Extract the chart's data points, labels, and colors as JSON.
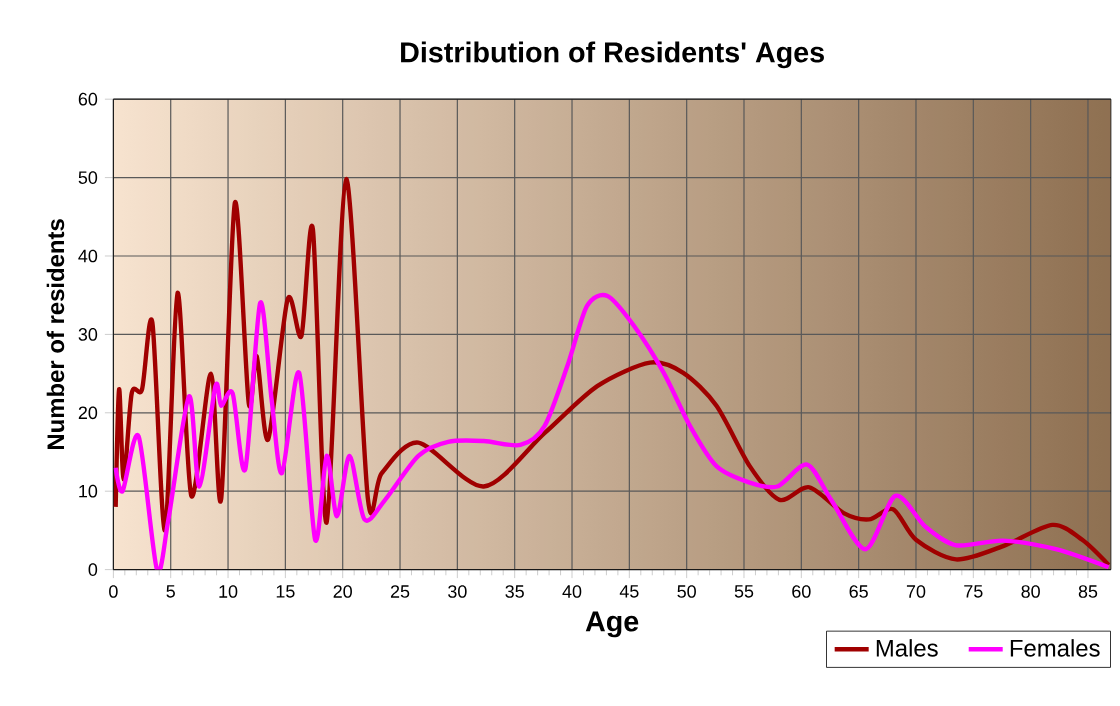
{
  "chart_data": {
    "type": "line",
    "title": "Distribution of Residents' Ages",
    "xlabel": "Age",
    "ylabel": "Number of residents",
    "xlim": [
      0,
      87
    ],
    "ylim": [
      0,
      60
    ],
    "xticks": [
      0,
      5,
      10,
      15,
      20,
      25,
      30,
      35,
      40,
      45,
      50,
      55,
      60,
      65,
      70,
      75,
      80,
      85
    ],
    "yticks": [
      0,
      10,
      20,
      30,
      40,
      50,
      60
    ],
    "grid": true,
    "legend": "bottom right",
    "marker": "none",
    "line_style": "solid",
    "series": [
      {
        "name": "Males",
        "color": "#a00000",
        "x": [
          0.2,
          0.5,
          0.9,
          1.6,
          2.5,
          3.4,
          4.5,
          5.6,
          6.8,
          8.5,
          9.4,
          10.6,
          11.8,
          12.5,
          13.5,
          15.2,
          16.4,
          17.4,
          18.6,
          20.3,
          22.2,
          23.4,
          26.6,
          32.3,
          37.6,
          42.2,
          46.8,
          49.7,
          52.6,
          55.5,
          58.1,
          60.7,
          63.7,
          65.9,
          68,
          70,
          73.5,
          77.6,
          81.9,
          84.5,
          86.8
        ],
        "values": [
          8,
          23,
          11.5,
          22.5,
          23,
          31.5,
          5,
          35.3,
          9.4,
          25,
          9,
          46.8,
          21.3,
          27.2,
          16.6,
          34.5,
          29.8,
          43.4,
          6,
          49.8,
          9,
          12.3,
          16.2,
          10.6,
          17.4,
          23.4,
          26.4,
          25.1,
          20.9,
          13.2,
          8.9,
          10.5,
          7.2,
          6.4,
          7.7,
          3.8,
          1.3,
          3,
          5.7,
          3.8,
          0.6
        ]
      },
      {
        "name": "Females",
        "color": "#ff00ff",
        "x": [
          0.2,
          0.8,
          2.2,
          3.8,
          4.8,
          6.6,
          7.5,
          8.9,
          9.4,
          10.4,
          11.5,
          12.8,
          13.8,
          14.7,
          16.2,
          17.6,
          18.6,
          19.5,
          20.6,
          21.9,
          23.7,
          26.6,
          29.2,
          32.3,
          35.5,
          37.6,
          39.6,
          41.3,
          43.1,
          45.4,
          48,
          50.3,
          52.6,
          55.5,
          57.9,
          60.5,
          62.6,
          65.6,
          68.2,
          70.8,
          73.5,
          77.6,
          82.2,
          86.8
        ],
        "values": [
          13,
          10,
          17,
          0,
          6.4,
          22.1,
          10.6,
          23.4,
          20.9,
          22.5,
          12.8,
          34,
          21.7,
          12.3,
          25.1,
          3.8,
          14.5,
          6.8,
          14.5,
          6.4,
          8.9,
          14.5,
          16.3,
          16.4,
          15.9,
          18.3,
          26,
          33.6,
          34.9,
          31.1,
          25.1,
          18.3,
          13.2,
          11.1,
          10.6,
          13.4,
          8.9,
          2.6,
          9.4,
          5.5,
          3.1,
          3.7,
          2.6,
          0.3
        ]
      }
    ]
  }
}
